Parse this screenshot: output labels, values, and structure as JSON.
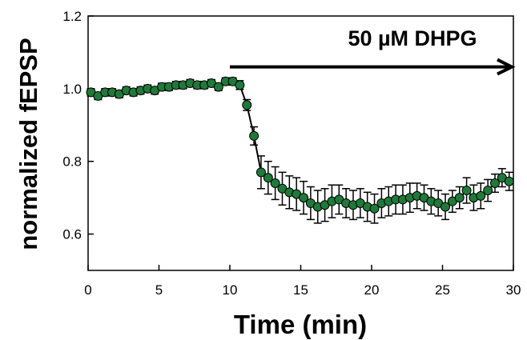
{
  "chart_data": {
    "type": "scatter",
    "title": "",
    "xlabel": "Time (min)",
    "ylabel": "normalized fEPSP",
    "xlim": [
      0,
      30
    ],
    "ylim": [
      0.5,
      1.2
    ],
    "xticks": [
      "0",
      "5",
      "10",
      "15",
      "20",
      "25",
      "30"
    ],
    "yticks": [
      "0.6",
      "0.8",
      "1.0",
      "1.2"
    ],
    "grid": false,
    "annotation": {
      "text": "50 µM DHPG",
      "arrow_from_x": 10,
      "arrow_to_x": 30
    },
    "series": [
      {
        "marker_color": "#1f7a3a",
        "line_color": "#000000",
        "x": [
          0.2,
          0.7,
          1.2,
          1.7,
          2.2,
          2.7,
          3.2,
          3.7,
          4.2,
          4.7,
          5.2,
          5.7,
          6.2,
          6.7,
          7.2,
          7.7,
          8.2,
          8.7,
          9.2,
          9.7,
          10.2,
          10.7,
          11.2,
          11.7,
          12.2,
          12.7,
          13.2,
          13.7,
          14.2,
          14.7,
          15.2,
          15.7,
          16.2,
          16.7,
          17.2,
          17.7,
          18.2,
          18.7,
          19.2,
          19.7,
          20.2,
          20.7,
          21.2,
          21.7,
          22.2,
          22.7,
          23.2,
          23.7,
          24.2,
          24.7,
          25.2,
          25.7,
          26.2,
          26.7,
          27.2,
          27.7,
          28.2,
          28.7,
          29.2,
          29.7
        ],
        "y": [
          0.99,
          0.98,
          0.99,
          0.99,
          0.985,
          0.995,
          0.99,
          0.995,
          1.0,
          0.995,
          1.005,
          1.005,
          1.01,
          1.01,
          1.015,
          1.01,
          1.01,
          1.015,
          1.005,
          1.02,
          1.02,
          1.01,
          0.955,
          0.87,
          0.77,
          0.755,
          0.74,
          0.725,
          0.715,
          0.71,
          0.7,
          0.685,
          0.675,
          0.68,
          0.69,
          0.695,
          0.685,
          0.68,
          0.685,
          0.675,
          0.67,
          0.685,
          0.69,
          0.695,
          0.695,
          0.7,
          0.705,
          0.7,
          0.69,
          0.685,
          0.675,
          0.69,
          0.7,
          0.72,
          0.7,
          0.705,
          0.72,
          0.74,
          0.755,
          0.745
        ],
        "error": [
          0.01,
          0.01,
          0.01,
          0.01,
          0.01,
          0.01,
          0.01,
          0.01,
          0.01,
          0.01,
          0.01,
          0.01,
          0.01,
          0.01,
          0.01,
          0.01,
          0.01,
          0.01,
          0.01,
          0.01,
          0.01,
          0.012,
          0.015,
          0.025,
          0.045,
          0.045,
          0.045,
          0.045,
          0.045,
          0.045,
          0.045,
          0.045,
          0.045,
          0.045,
          0.045,
          0.04,
          0.04,
          0.04,
          0.04,
          0.04,
          0.04,
          0.04,
          0.04,
          0.04,
          0.04,
          0.04,
          0.035,
          0.035,
          0.035,
          0.035,
          0.035,
          0.03,
          0.03,
          0.035,
          0.035,
          0.035,
          0.03,
          0.025,
          0.025,
          0.025
        ]
      }
    ]
  }
}
